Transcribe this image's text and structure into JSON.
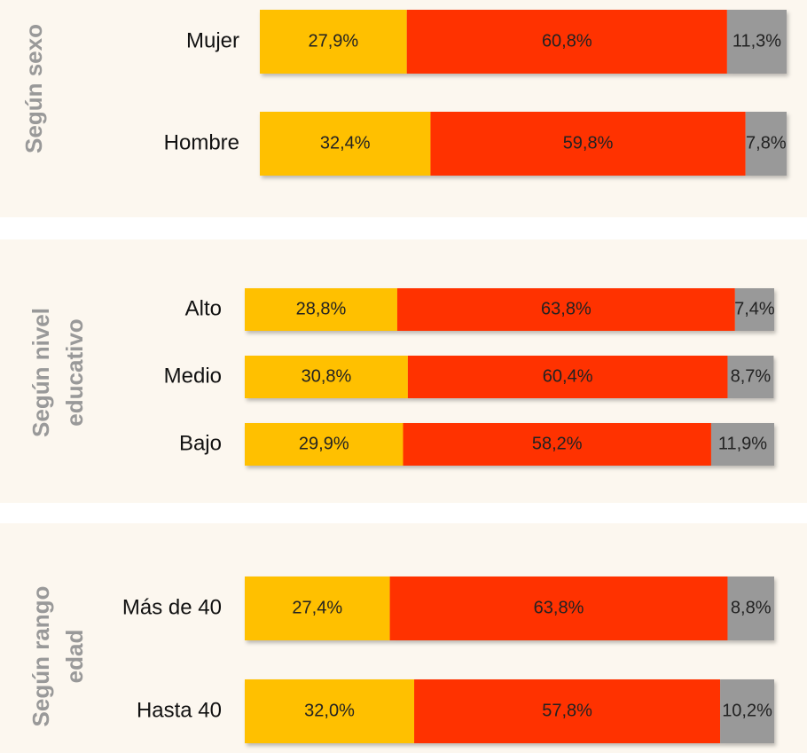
{
  "chart_data": [
    {
      "type": "bar",
      "orientation": "horizontal",
      "stacked": true,
      "title": [
        "Según sexo"
      ],
      "categories": [
        "Mujer",
        "Hombre"
      ],
      "xlim": [
        0,
        100
      ],
      "series": [
        {
          "color": "#ffc000",
          "values": [
            27.9,
            32.4
          ],
          "value_labels": [
            "27,9%",
            "32,4%"
          ]
        },
        {
          "color": "#ff3300",
          "values": [
            60.8,
            59.8
          ],
          "value_labels": [
            "60,8%",
            "59,8%"
          ]
        },
        {
          "color": "#999999",
          "values": [
            11.3,
            7.8
          ],
          "value_labels": [
            "11,3%",
            "7,8%"
          ]
        }
      ]
    },
    {
      "type": "bar",
      "orientation": "horizontal",
      "stacked": true,
      "title": [
        "Según nivel",
        "educativo"
      ],
      "categories": [
        "Alto",
        "Medio",
        "Bajo"
      ],
      "xlim": [
        0,
        100
      ],
      "series": [
        {
          "color": "#ffc000",
          "values": [
            28.8,
            30.8,
            29.9
          ],
          "value_labels": [
            "28,8%",
            "30,8%",
            "29,9%"
          ]
        },
        {
          "color": "#ff3300",
          "values": [
            63.8,
            60.4,
            58.2
          ],
          "value_labels": [
            "63,8%",
            "60,4%",
            "58,2%"
          ]
        },
        {
          "color": "#999999",
          "values": [
            7.4,
            8.7,
            11.9
          ],
          "value_labels": [
            "7,4%",
            "8,7%",
            "11,9%"
          ]
        }
      ]
    },
    {
      "type": "bar",
      "orientation": "horizontal",
      "stacked": true,
      "title": [
        "Según rango",
        "edad"
      ],
      "categories": [
        "Más de 40",
        "Hasta 40"
      ],
      "xlim": [
        0,
        100
      ],
      "series": [
        {
          "color": "#ffc000",
          "values": [
            27.4,
            32.0
          ],
          "value_labels": [
            "27,4%",
            "32,0%"
          ]
        },
        {
          "color": "#ff3300",
          "values": [
            63.8,
            57.8
          ],
          "value_labels": [
            "63,8%",
            "57,8%"
          ]
        },
        {
          "color": "#999999",
          "values": [
            8.8,
            10.2
          ],
          "value_labels": [
            "8,8%",
            "10,2%"
          ]
        }
      ]
    }
  ]
}
